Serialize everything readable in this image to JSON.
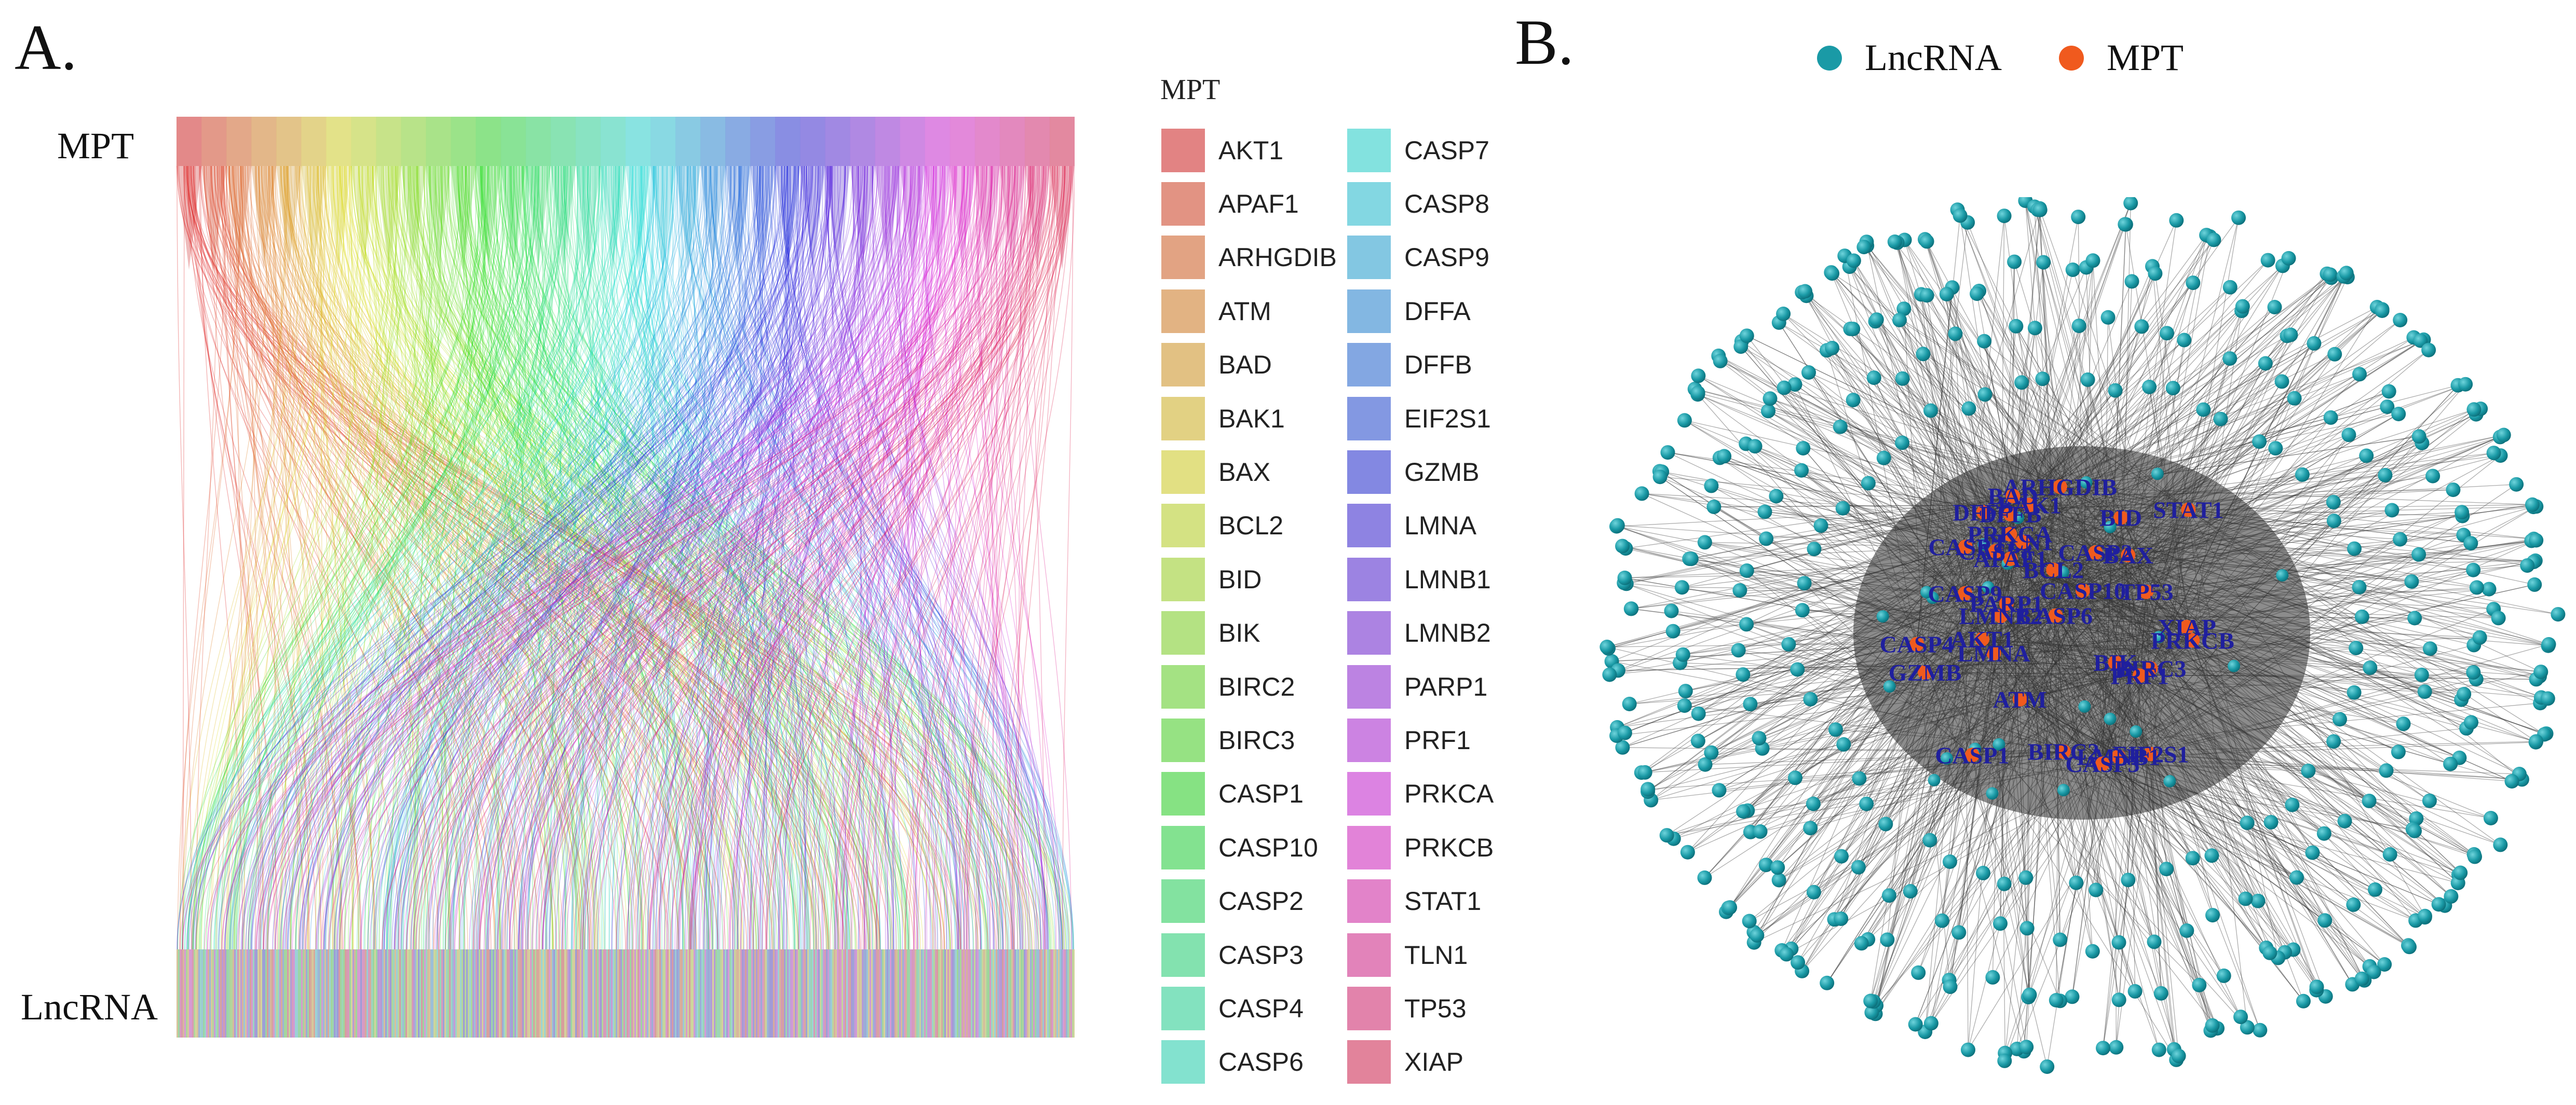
{
  "panel_a": {
    "letter": "A.",
    "top_label": "MPT",
    "bottom_label": "LncRNA",
    "legend_title": "MPT",
    "legend_col1": [
      "AKT1",
      "APAF1",
      "ARHGDIB",
      "ATM",
      "BAD",
      "BAK1",
      "BAX",
      "BCL2",
      "BID",
      "BIK",
      "BIRC2",
      "BIRC3",
      "CASP1",
      "CASP10",
      "CASP2",
      "CASP3",
      "CASP4",
      "CASP6"
    ],
    "legend_col2": [
      "CASP7",
      "CASP8",
      "CASP9",
      "DFFA",
      "DFFB",
      "EIF2S1",
      "GZMB",
      "LMNA",
      "LMNB1",
      "LMNB2",
      "PARP1",
      "PRF1",
      "PRKCA",
      "PRKCB",
      "STAT1",
      "TLN1",
      "TP53",
      "XIAP"
    ]
  },
  "panel_b": {
    "letter": "B.",
    "legend": [
      {
        "label": "LncRNA",
        "color": "#1a9aa6"
      },
      {
        "label": "MPT",
        "color": "#f05a1e"
      }
    ],
    "core_labels": [
      "DFFA",
      "DFFB",
      "EIF2S1",
      "CASP9",
      "BIK",
      "GZMB",
      "BID",
      "BIRC2",
      "CASP8",
      "LMNA",
      "BCL2",
      "ARHGDIB",
      "BIRC3",
      "CASP7",
      "APAF1",
      "AKT1",
      "ATM",
      "LMNB1",
      "XIAP",
      "BAX",
      "CASP1",
      "CASP6",
      "BAK1",
      "BAD",
      "LMNB2",
      "TP53",
      "CASP10",
      "CASP4",
      "TLN1",
      "CASP3",
      "CASP2",
      "PARP1",
      "STAT1",
      "PRF1",
      "PRKCB",
      "PRKCA"
    ]
  },
  "colors": {
    "edge": "#3a3a3a",
    "node": "#1a9aa6",
    "node_dark": "#0b6d78",
    "hub": "#f05a1e",
    "hub_label": "#1f1f9e"
  }
}
